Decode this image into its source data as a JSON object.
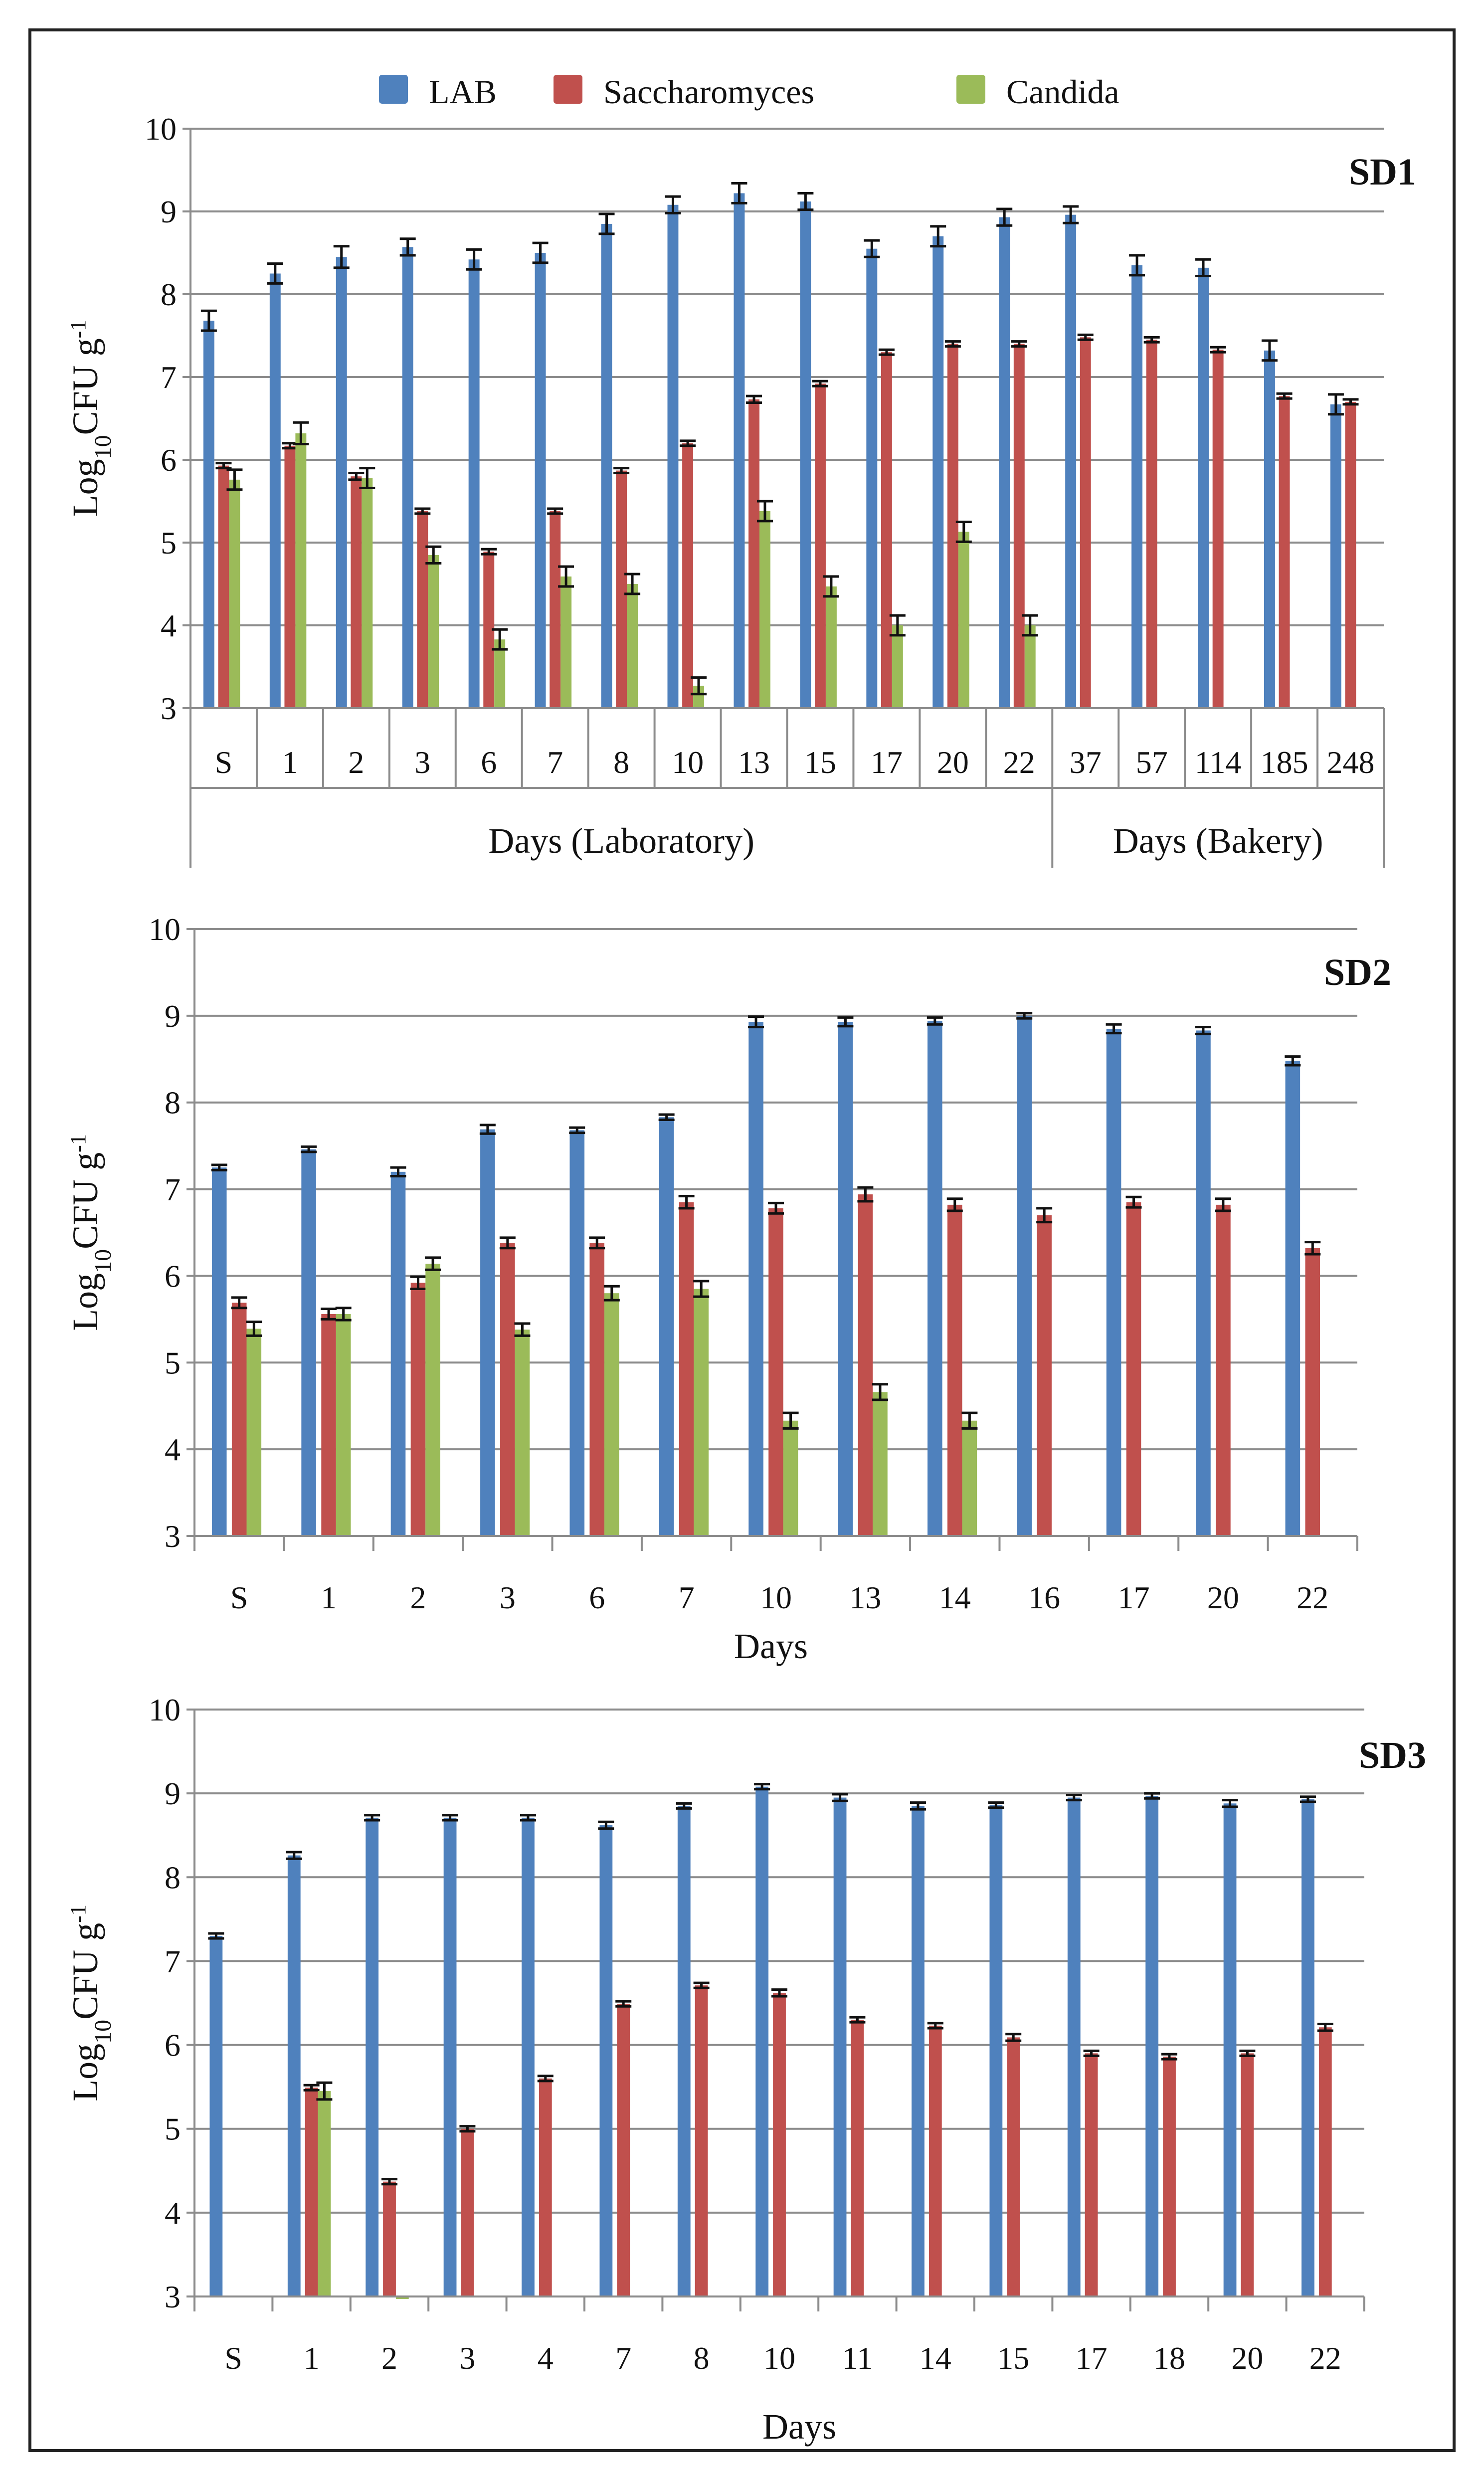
{
  "legend": [
    {
      "name": "LAB",
      "color": "#4F81BD"
    },
    {
      "name": "Saccharomyces",
      "color": "#C0504D"
    },
    {
      "name": "Candida",
      "color": "#9BBB59"
    }
  ],
  "chart_data": [
    {
      "type": "bar",
      "title": "SD1",
      "ylabel": "Log10 CFU g-1",
      "ylabel_parts": {
        "base": "Log",
        "sub": "10",
        "text": "CFU g",
        "sup": "-1"
      },
      "ylim": [
        3,
        10
      ],
      "yticks": [
        3,
        4,
        5,
        6,
        7,
        8,
        9,
        10
      ],
      "categories": [
        "S",
        "1",
        "2",
        "3",
        "6",
        "7",
        "8",
        "10",
        "13",
        "15",
        "17",
        "20",
        "22",
        "37",
        "57",
        "114",
        "185",
        "248"
      ],
      "groups": [
        {
          "label": "Days (Laboratory)",
          "start": 0,
          "end": 12
        },
        {
          "label": "Days (Bakery)",
          "start": 13,
          "end": 17
        }
      ],
      "series": [
        {
          "name": "LAB",
          "values": [
            7.68,
            8.25,
            8.45,
            8.57,
            8.42,
            8.5,
            8.85,
            9.08,
            9.22,
            9.12,
            8.55,
            8.7,
            8.93,
            8.96,
            8.35,
            8.32,
            7.32,
            6.67
          ],
          "errors": [
            0.12,
            0.12,
            0.13,
            0.1,
            0.12,
            0.12,
            0.12,
            0.1,
            0.12,
            0.1,
            0.1,
            0.12,
            0.1,
            0.1,
            0.12,
            0.1,
            0.12,
            0.12
          ]
        },
        {
          "name": "Saccharomyces",
          "values": [
            5.93,
            6.17,
            5.8,
            5.38,
            4.89,
            5.38,
            5.87,
            6.2,
            6.73,
            6.92,
            7.3,
            7.4,
            7.4,
            7.48,
            7.45,
            7.33,
            6.77,
            6.7
          ],
          "errors": [
            0.03,
            0.03,
            0.04,
            0.03,
            0.03,
            0.03,
            0.03,
            0.03,
            0.04,
            0.03,
            0.03,
            0.03,
            0.03,
            0.03,
            0.03,
            0.03,
            0.03,
            0.03
          ]
        },
        {
          "name": "Candida",
          "values": [
            5.76,
            6.32,
            5.78,
            4.85,
            3.83,
            4.59,
            4.5,
            3.27,
            5.38,
            4.47,
            4.0,
            5.13,
            4.0,
            null,
            null,
            null,
            null,
            null
          ],
          "errors": [
            0.12,
            0.13,
            0.12,
            0.1,
            0.12,
            0.12,
            0.12,
            0.1,
            0.12,
            0.12,
            0.12,
            0.12,
            0.12,
            null,
            null,
            null,
            null,
            null
          ]
        }
      ]
    },
    {
      "type": "bar",
      "title": "SD2",
      "ylabel": "Log10 CFU g-1",
      "ylabel_parts": {
        "base": "Log",
        "sub": "10",
        "text": "CFU g",
        "sup": "-1"
      },
      "xlabel": "Days",
      "ylim": [
        3,
        10
      ],
      "yticks": [
        3,
        4,
        5,
        6,
        7,
        8,
        9,
        10
      ],
      "categories": [
        "S",
        "1",
        "2",
        "3",
        "6",
        "7",
        "10",
        "13",
        "14",
        "16",
        "17",
        "20",
        "22"
      ],
      "series": [
        {
          "name": "LAB",
          "values": [
            7.25,
            7.46,
            7.2,
            7.69,
            7.68,
            7.83,
            8.93,
            8.93,
            8.94,
            9.0,
            8.85,
            8.83,
            8.48
          ],
          "errors": [
            0.03,
            0.03,
            0.05,
            0.05,
            0.03,
            0.03,
            0.06,
            0.05,
            0.04,
            0.03,
            0.05,
            0.04,
            0.05
          ]
        },
        {
          "name": "Saccharomyces",
          "values": [
            5.69,
            5.56,
            5.92,
            6.38,
            6.38,
            6.85,
            6.78,
            6.94,
            6.82,
            6.7,
            6.85,
            6.82,
            6.32
          ],
          "errors": [
            0.06,
            0.06,
            0.07,
            0.06,
            0.06,
            0.07,
            0.06,
            0.08,
            0.07,
            0.08,
            0.06,
            0.07,
            0.07
          ]
        },
        {
          "name": "Candida",
          "values": [
            5.39,
            5.56,
            6.14,
            5.38,
            5.8,
            5.85,
            4.33,
            4.66,
            4.33,
            null,
            null,
            null,
            null
          ],
          "errors": [
            0.08,
            0.07,
            0.07,
            0.07,
            0.08,
            0.09,
            0.09,
            0.09,
            0.09,
            null,
            null,
            null,
            null
          ]
        }
      ]
    },
    {
      "type": "bar",
      "title": "SD3",
      "ylabel": "Log10 CFU g-1",
      "ylabel_parts": {
        "base": "Log",
        "sub": "10",
        "text": "CFU g",
        "sup": "-1"
      },
      "xlabel": "Days",
      "ylim": [
        3,
        10
      ],
      "yticks": [
        3,
        4,
        5,
        6,
        7,
        8,
        9,
        10
      ],
      "categories": [
        "S",
        "1",
        "2",
        "3",
        "4",
        "7",
        "8",
        "10",
        "11",
        "14",
        "15",
        "17",
        "18",
        "20",
        "22"
      ],
      "series": [
        {
          "name": "LAB",
          "values": [
            7.3,
            8.26,
            8.71,
            8.71,
            8.71,
            8.62,
            8.85,
            9.08,
            8.95,
            8.85,
            8.86,
            8.95,
            8.97,
            8.88,
            8.93
          ],
          "errors": [
            0.03,
            0.04,
            0.03,
            0.03,
            0.03,
            0.04,
            0.03,
            0.03,
            0.04,
            0.04,
            0.03,
            0.03,
            0.03,
            0.04,
            0.03
          ]
        },
        {
          "name": "Saccharomyces",
          "values": [
            null,
            5.49,
            4.37,
            5.0,
            5.6,
            6.49,
            6.71,
            6.62,
            6.3,
            6.23,
            6.09,
            5.9,
            5.86,
            5.9,
            6.21
          ],
          "errors": [
            null,
            0.03,
            0.03,
            0.03,
            0.03,
            0.03,
            0.03,
            0.04,
            0.03,
            0.03,
            0.04,
            0.03,
            0.03,
            0.03,
            0.04
          ]
        },
        {
          "name": "Candida",
          "values": [
            null,
            5.45,
            2.97,
            null,
            null,
            null,
            null,
            null,
            null,
            null,
            null,
            null,
            null,
            null,
            null
          ],
          "errors": [
            null,
            0.1,
            null,
            null,
            null,
            null,
            null,
            null,
            null,
            null,
            null,
            null,
            null,
            null,
            null
          ]
        }
      ]
    }
  ]
}
